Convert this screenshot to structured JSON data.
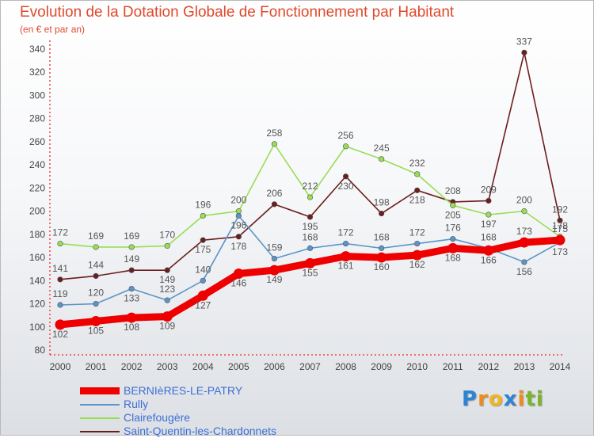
{
  "chart_data": {
    "type": "line",
    "title": "Evolution de la Dotation Globale de Fonctionnement par Habitant",
    "subtitle": "(en € et par an)",
    "xlabel": "",
    "ylabel": "",
    "x": [
      "2000",
      "2001",
      "2002",
      "2003",
      "2004",
      "2005",
      "2006",
      "2007",
      "2008",
      "2009",
      "2010",
      "2011",
      "2012",
      "2013",
      "2014"
    ],
    "ylim": [
      80,
      340
    ],
    "yticks": [
      80,
      100,
      120,
      140,
      160,
      180,
      200,
      220,
      240,
      260,
      280,
      300,
      320,
      340
    ],
    "grid": false,
    "legend_position": "bottom-left",
    "series": [
      {
        "name": "BERNIèRES-LE-PATRY",
        "color": "#ee0000",
        "values": [
          102,
          105,
          108,
          109,
          127,
          146,
          149,
          155,
          161,
          160,
          162,
          168,
          166,
          173,
          175
        ]
      },
      {
        "name": "Rully",
        "color": "#5b95c8",
        "values": [
          119,
          120,
          133,
          123,
          140,
          196,
          159,
          168,
          172,
          168,
          172,
          176,
          168,
          156,
          173
        ]
      },
      {
        "name": "Clairefougère",
        "color": "#99dd55",
        "values": [
          172,
          169,
          169,
          170,
          196,
          200,
          258,
          212,
          256,
          245,
          232,
          205,
          197,
          200,
          178
        ]
      },
      {
        "name": "Saint-Quentin-les-Chardonnets",
        "color": "#6b1e1e",
        "values": [
          141,
          144,
          149,
          149,
          175,
          178,
          206,
          195,
          230,
          198,
          218,
          208,
          209,
          337,
          192
        ]
      }
    ]
  },
  "brand": {
    "letters": [
      {
        "char": "P",
        "color": "#2d84d4"
      },
      {
        "char": "r",
        "color": "#ef8a1c"
      },
      {
        "char": "o",
        "color": "#f1b51f"
      },
      {
        "char": "x",
        "color": "#2d84d4"
      },
      {
        "char": "i",
        "color": "#ef8a1c"
      },
      {
        "char": "t",
        "color": "#79b52d"
      },
      {
        "char": "i",
        "color": "#79b52d"
      }
    ]
  }
}
